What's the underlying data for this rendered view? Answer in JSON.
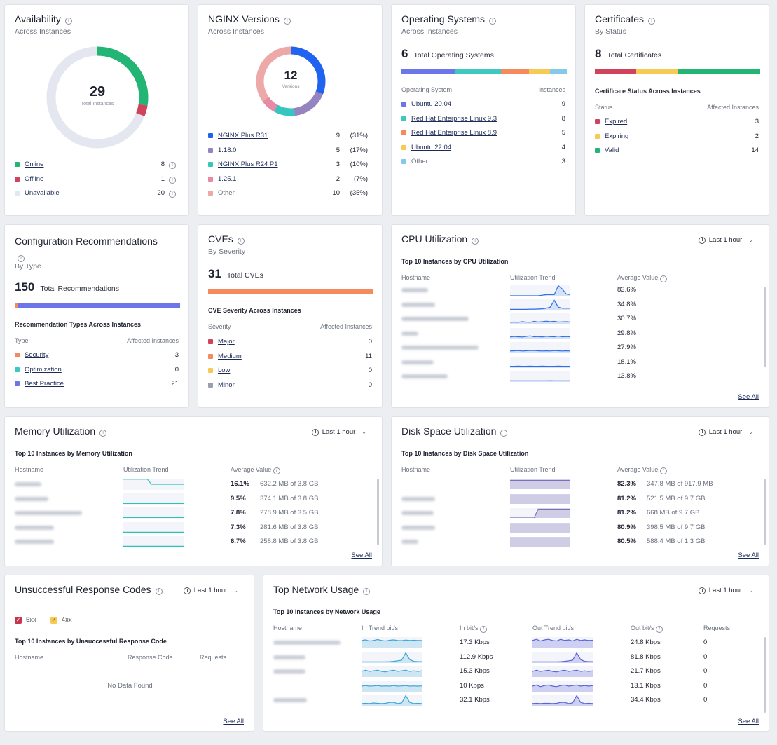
{
  "availability": {
    "title": "Availability",
    "subtitle": "Across Instances",
    "total": "29",
    "total_label": "Total Instances",
    "items": [
      {
        "label": "Online",
        "value": "8",
        "color": "#22b573"
      },
      {
        "label": "Offline",
        "value": "1",
        "color": "#d1435b"
      },
      {
        "label": "Unavailable",
        "value": "20",
        "color": "#e4e6f0"
      }
    ]
  },
  "nginx": {
    "title": "NGINX Versions",
    "subtitle": "Across Instances",
    "total": "12",
    "total_label": "Versions",
    "items": [
      {
        "label": "NGINX Plus R31",
        "value": "9",
        "pct": "(31%)",
        "color": "#1f63f0",
        "link": true
      },
      {
        "label": "1.18.0",
        "value": "5",
        "pct": "(17%)",
        "color": "#9485c0",
        "link": true
      },
      {
        "label": "NGINX Plus R24 P1",
        "value": "3",
        "pct": "(10%)",
        "color": "#35c7bf",
        "link": true
      },
      {
        "label": "1.25.1",
        "value": "2",
        "pct": "(7%)",
        "color": "#e78aa4",
        "link": true
      },
      {
        "label": "Other",
        "value": "10",
        "pct": "(35%)",
        "color": "#eca9a8",
        "link": false
      }
    ]
  },
  "os": {
    "title": "Operating Systems",
    "subtitle": "Across Instances",
    "total": "6",
    "total_label": "Total Operating Systems",
    "col1": "Operating System",
    "col2": "Instances",
    "items": [
      {
        "label": "Ubuntu 20.04",
        "value": "9",
        "color": "#6b76e8",
        "link": true
      },
      {
        "label": "Red Hat Enterprise Linux 9.3",
        "value": "8",
        "color": "#3fc8c0",
        "link": true
      },
      {
        "label": "Red Hat Enterprise Linux 8.9",
        "value": "5",
        "color": "#f58a5c",
        "link": true
      },
      {
        "label": "Ubuntu 22.04",
        "value": "4",
        "color": "#f7cb53",
        "link": true
      },
      {
        "label": "Other",
        "value": "3",
        "color": "#84c9e8",
        "link": false
      }
    ]
  },
  "certs": {
    "title": "Certificates",
    "subtitle": "By Status",
    "total": "8",
    "total_label": "Total Certificates",
    "section": "Certificate Status Across Instances",
    "col1": "Status",
    "col2": "Affected Instances",
    "items": [
      {
        "label": "Expired",
        "value": "3",
        "color": "#d1435b"
      },
      {
        "label": "Expiring",
        "value": "2",
        "color": "#f7cb53"
      },
      {
        "label": "Valid",
        "value": "14",
        "color": "#22b573"
      }
    ]
  },
  "config": {
    "title": "Configuration Recommendations",
    "subtitle": "By Type",
    "total": "150",
    "total_label": "Total Recommendations",
    "section": "Recommendation Types Across Instances",
    "col1": "Type",
    "col2": "Affected Instances",
    "items": [
      {
        "label": "Security",
        "value": "3",
        "color": "#f58a5c"
      },
      {
        "label": "Optimization",
        "value": "0",
        "color": "#3fc8c0"
      },
      {
        "label": "Best Practice",
        "value": "21",
        "color": "#6b76e8"
      }
    ]
  },
  "cves": {
    "title": "CVEs",
    "subtitle": "By Severity",
    "total": "31",
    "total_label": "Total CVEs",
    "section": "CVE Severity Across Instances",
    "col1": "Severity",
    "col2": "Affected Instances",
    "items": [
      {
        "label": "Major",
        "value": "0",
        "color": "#d1435b"
      },
      {
        "label": "Medium",
        "value": "11",
        "color": "#f58a5c"
      },
      {
        "label": "Low",
        "value": "0",
        "color": "#f7cb53"
      },
      {
        "label": "Minor",
        "value": "0",
        "color": "#9aa0ad"
      }
    ]
  },
  "cpu": {
    "title": "CPU Utilization",
    "time": "Last 1 hour",
    "section": "Top 10 Instances by CPU Utilization",
    "col1": "Hostname",
    "col2": "Utilization Trend",
    "col3": "Average Value",
    "values": [
      "83.6%",
      "34.8%",
      "30.7%",
      "29.8%",
      "27.9%",
      "18.1%",
      "13.8%"
    ],
    "see_all": "See All"
  },
  "memory": {
    "title": "Memory Utilization",
    "time": "Last 1 hour",
    "section": "Top 10 Instances by Memory Utilization",
    "col1": "Hostname",
    "col2": "Utilization Trend",
    "col3": "Average Value",
    "rows": [
      {
        "pct": "16.1%",
        "detail": "632.2 MB of 3.8 GB"
      },
      {
        "pct": "9.5%",
        "detail": "374.1 MB of 3.8 GB"
      },
      {
        "pct": "7.8%",
        "detail": "278.9 MB of 3.5 GB"
      },
      {
        "pct": "7.3%",
        "detail": "281.6 MB of 3.8 GB"
      },
      {
        "pct": "6.7%",
        "detail": "258.8 MB of 3.8 GB"
      }
    ],
    "see_all": "See All"
  },
  "disk": {
    "title": "Disk Space Utilization",
    "time": "Last 1 hour",
    "section": "Top 10 Instances by Disk Space Utilization",
    "col1": "Hostname",
    "col2": "Utilization Trend",
    "col3": "Average Value",
    "rows": [
      {
        "pct": "82.3%",
        "detail": "347.8 MB of 917.9 MB"
      },
      {
        "pct": "81.2%",
        "detail": "521.5 MB of 9.7 GB"
      },
      {
        "pct": "81.2%",
        "detail": "668 MB of 9.7 GB"
      },
      {
        "pct": "80.9%",
        "detail": "398.5 MB of 9.7 GB"
      },
      {
        "pct": "80.5%",
        "detail": "588.4 MB of 1.3 GB"
      }
    ],
    "see_all": "See All"
  },
  "response": {
    "title": "Unsuccessful Response Codes",
    "time": "Last 1 hour",
    "legend": [
      {
        "label": "5xx",
        "color": "#c8344d"
      },
      {
        "label": "4xx",
        "color": "#f7cb53"
      }
    ],
    "section": "Top 10 Instances by Unsuccessful Response Code",
    "col1": "Hostname",
    "col2": "Response Code",
    "col3": "Requests",
    "empty": "No Data Found",
    "see_all": "See All"
  },
  "network": {
    "title": "Top Network Usage",
    "time": "Last 1 hour",
    "section": "Top 10 Instances by Network Usage",
    "col1": "Hostname",
    "col2": "In Trend bit/s",
    "col3": "In bit/s",
    "col4": "Out Trend bit/s",
    "col5": "Out bit/s",
    "col6": "Requests",
    "rows": [
      {
        "in": "17.3 Kbps",
        "out": "24.8 Kbps",
        "req": "0"
      },
      {
        "in": "112.9 Kbps",
        "out": "81.8 Kbps",
        "req": "0"
      },
      {
        "in": "15.3 Kbps",
        "out": "21.7 Kbps",
        "req": "0"
      },
      {
        "in": "10 Kbps",
        "out": "13.1 Kbps",
        "req": "0"
      },
      {
        "in": "32.1 Kbps",
        "out": "34.4 Kbps",
        "req": "0"
      }
    ],
    "see_all": "See All"
  }
}
